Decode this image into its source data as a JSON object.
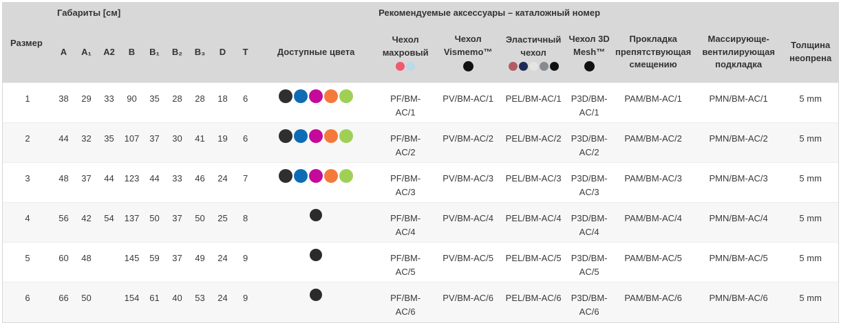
{
  "table": {
    "group_headers": {
      "dimensions": "Габариты [см]",
      "accessories": "Рекомендуемые аксессуары – каталожный номер"
    },
    "columns": {
      "size": "Размер",
      "dims": [
        "A",
        "A₁",
        "A2",
        "B",
        "B₁",
        "B₂",
        "B₃",
        "D",
        "T"
      ],
      "available_colors": "Доступные цвета",
      "terry": {
        "label": "Чехол махровый",
        "dots": [
          "#f2596e",
          "#bcd9e6"
        ]
      },
      "vismemo": {
        "label": "Чехол Vismemo™",
        "dots": [
          "#111111"
        ]
      },
      "elastic": {
        "label": "Эластичный чехол",
        "dots": [
          "#b35b63",
          "#1e2a56",
          "#e4e4e4",
          "#868b90",
          "#111111"
        ]
      },
      "mesh3d": {
        "label": "Чехол 3D Mesh™",
        "dots": [
          "#111111"
        ]
      },
      "pad_antislip": "Прокладка препятствующая смещению",
      "pad_massage": "Массирующе-вентилирующая подкладка",
      "thickness": "Толщина неопрена"
    },
    "available_palette": {
      "full": [
        "#2f2f2f",
        "#0f6cb4",
        "#c5099b",
        "#f5793b",
        "#9fd055"
      ],
      "black_only": [
        "#2b2b2b"
      ]
    },
    "rows": [
      {
        "size": "1",
        "dims": [
          "38",
          "29",
          "33",
          "90",
          "35",
          "28",
          "28",
          "18",
          "6"
        ],
        "colors": "full",
        "terry": "PF/BM-AC/1",
        "vismemo": "PV/BM-AC/1",
        "elastic": "PEL/BM-AC/1",
        "mesh3d": "P3D/BM-AC/1",
        "pad_antislip": "PAM/BM-AC/1",
        "pad_massage": "PMN/BM-AC/1",
        "thickness": "5 mm"
      },
      {
        "size": "2",
        "dims": [
          "44",
          "32",
          "35",
          "107",
          "37",
          "30",
          "41",
          "19",
          "6"
        ],
        "colors": "full",
        "terry": "PF/BM-AC/2",
        "vismemo": "PV/BM-AC/2",
        "elastic": "PEL/BM-AC/2",
        "mesh3d": "P3D/BM-AC/2",
        "pad_antislip": "PAM/BM-AC/2",
        "pad_massage": "PMN/BM-AC/2",
        "thickness": "5 mm"
      },
      {
        "size": "3",
        "dims": [
          "48",
          "37",
          "44",
          "123",
          "44",
          "33",
          "46",
          "24",
          "7"
        ],
        "colors": "full",
        "terry": "PF/BM-AC/3",
        "vismemo": "PV/BM-AC/3",
        "elastic": "PEL/BM-AC/3",
        "mesh3d": "P3D/BM-AC/3",
        "pad_antislip": "PAM/BM-AC/3",
        "pad_massage": "PMN/BM-AC/3",
        "thickness": "5 mm"
      },
      {
        "size": "4",
        "dims": [
          "56",
          "42",
          "54",
          "137",
          "50",
          "37",
          "50",
          "25",
          "8"
        ],
        "colors": "black_only",
        "terry": "PF/BM-AC/4",
        "vismemo": "PV/BM-AC/4",
        "elastic": "PEL/BM-AC/4",
        "mesh3d": "P3D/BM-AC/4",
        "pad_antislip": "PAM/BM-AC/4",
        "pad_massage": "PMN/BM-AC/4",
        "thickness": "5 mm"
      },
      {
        "size": "5",
        "dims": [
          "60",
          "48",
          "",
          "145",
          "59",
          "37",
          "49",
          "24",
          "9"
        ],
        "colors": "black_only",
        "terry": "PF/BM-AC/5",
        "vismemo": "PV/BM-AC/5",
        "elastic": "PEL/BM-AC/5",
        "mesh3d": "P3D/BM-AC/5",
        "pad_antislip": "PAM/BM-AC/5",
        "pad_massage": "PMN/BM-AC/5",
        "thickness": "5 mm"
      },
      {
        "size": "6",
        "dims": [
          "66",
          "50",
          "",
          "154",
          "61",
          "40",
          "53",
          "24",
          "9"
        ],
        "colors": "black_only",
        "terry": "PF/BM-AC/6",
        "vismemo": "PV/BM-AC/6",
        "elastic": "PEL/BM-AC/6",
        "mesh3d": "P3D/BM-AC/6",
        "pad_antislip": "PAM/BM-AC/6",
        "pad_massage": "PMN/BM-AC/6",
        "thickness": "5 mm"
      }
    ]
  }
}
